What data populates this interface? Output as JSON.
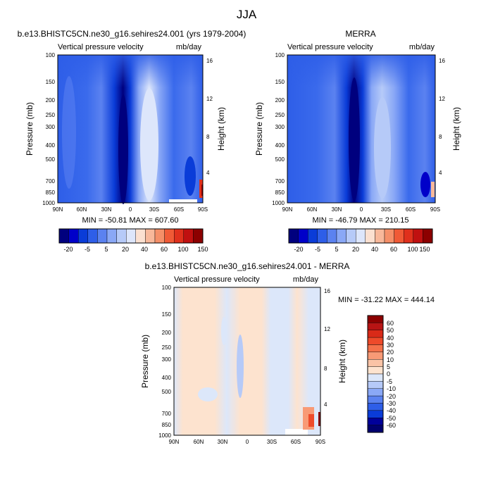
{
  "figure_title": "JJA",
  "chart_data": [
    {
      "type": "heatmap",
      "title": "b.e13.BHISTC5CN.ne30_g16.sehires24.001 (yrs 1979-2004)",
      "subtitle_left": "Vertical pressure velocity",
      "subtitle_right": "mb/day",
      "xlabel": "",
      "ylabel": "Pressure (mb)",
      "ylabel_right": "Height (km)",
      "x_ticks": [
        "90N",
        "60N",
        "30N",
        "0",
        "30S",
        "60S",
        "90S"
      ],
      "y_ticks": [
        100,
        150,
        200,
        250,
        300,
        400,
        500,
        700,
        850,
        1000
      ],
      "y_right_ticks": [
        16,
        12,
        8,
        4
      ],
      "stats": "MIN = -50.81   MAX = 607.60",
      "colorbar_labels": [
        "-20",
        "-5",
        "5",
        "20",
        "40",
        "60",
        "100",
        "150"
      ],
      "colors": [
        "#00007e",
        "#0000c9",
        "#0a3cd8",
        "#2e5ee8",
        "#5b82f0",
        "#8aa8f6",
        "#b6caf8",
        "#dde6fb",
        "#fbe0d0",
        "#f8b89a",
        "#f58f68",
        "#f05a36",
        "#e0301c",
        "#c01010",
        "#8c0000"
      ]
    },
    {
      "type": "heatmap",
      "title": "MERRA",
      "subtitle_left": "Vertical pressure velocity",
      "subtitle_right": "mb/day",
      "xlabel": "",
      "ylabel": "Pressure (mb)",
      "ylabel_right": "Height (km)",
      "x_ticks": [
        "90N",
        "60N",
        "30N",
        "0",
        "30S",
        "60S",
        "90S"
      ],
      "y_ticks": [
        100,
        150,
        200,
        250,
        300,
        400,
        500,
        700,
        850,
        1000
      ],
      "y_right_ticks": [
        16,
        12,
        8,
        4
      ],
      "stats": "MIN = -46.79   MAX = 210.15",
      "colorbar_labels": [
        "-20",
        "-5",
        "5",
        "20",
        "40",
        "60",
        "100",
        "150"
      ],
      "colors": [
        "#00007e",
        "#0000c9",
        "#0a3cd8",
        "#2e5ee8",
        "#5b82f0",
        "#8aa8f6",
        "#b6caf8",
        "#dde6fb",
        "#fbe0d0",
        "#f8b89a",
        "#f58f68",
        "#f05a36",
        "#e0301c",
        "#c01010",
        "#8c0000"
      ]
    },
    {
      "type": "heatmap",
      "title": "b.e13.BHISTC5CN.ne30_g16.sehires24.001 - MERRA",
      "subtitle_left": "Vertical pressure velocity",
      "subtitle_right": "mb/day",
      "xlabel": "",
      "ylabel": "Pressure (mb)",
      "ylabel_right": "Height (km)",
      "x_ticks": [
        "90N",
        "60N",
        "30N",
        "0",
        "30S",
        "60S",
        "90S"
      ],
      "y_ticks": [
        100,
        150,
        200,
        250,
        300,
        400,
        500,
        700,
        850,
        1000
      ],
      "y_right_ticks": [
        16,
        12,
        8,
        4
      ],
      "stats": "MIN = -31.22  MAX = 444.14",
      "colorbar_labels": [
        "60",
        "50",
        "40",
        "30",
        "20",
        "10",
        "5",
        "0",
        "-5",
        "-10",
        "-20",
        "-30",
        "-40",
        "-50",
        "-60"
      ],
      "colors": [
        "#8c0000",
        "#b81414",
        "#d92a18",
        "#ee4a2a",
        "#f5714a",
        "#f89a76",
        "#fac3a6",
        "#fde3cf",
        "#dce7fa",
        "#b6caf8",
        "#8aa8f6",
        "#5b82f0",
        "#2e5ee8",
        "#0a3cd8",
        "#00009a",
        "#00006e"
      ]
    }
  ]
}
